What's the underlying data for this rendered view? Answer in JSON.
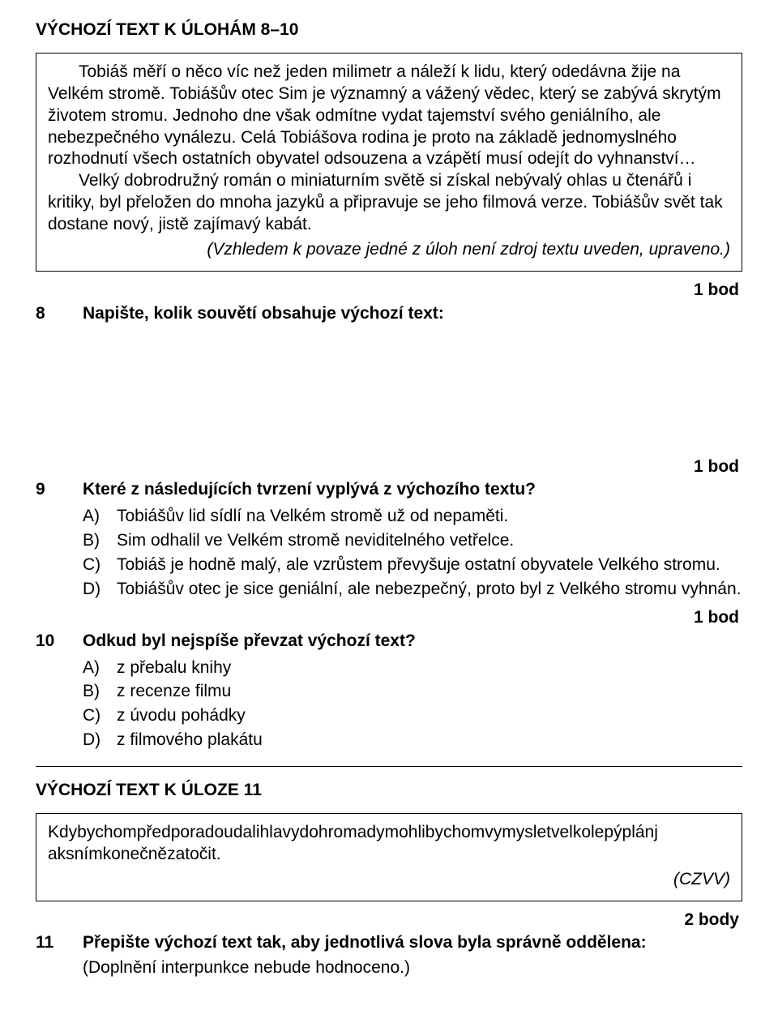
{
  "heading1": "VÝCHOZÍ TEXT K ÚLOHÁM 8–10",
  "box1": {
    "p1": "Tobiáš měří o něco víc než jeden milimetr a náleží k lidu, který odedávna žije na Velkém stromě. Tobiášův otec Sim je významný a vážený vědec, který se zabývá skrytým životem stromu. Jednoho dne však odmítne vydat tajemství svého geniálního, ale nebezpečného vynálezu. Celá Tobiášova rodina je proto na základě jednomyslného rozhodnutí všech ostatních obyvatel odsouzena a vzápětí musí odejít do vyhnanství…",
    "p2": "Velký dobrodružný román o miniaturním světě si získal nebývalý ohlas u čtenářů i kritiky, byl přeložen do mnoha jazyků a připravuje se jeho filmová verze. Tobiášův svět tak dostane nový, jistě zajímavý kabát.",
    "attribution": "(Vzhledem k povaze jedné z úloh není zdroj textu uveden, upraveno.)"
  },
  "q8": {
    "points": "1 bod",
    "number": "8",
    "prompt": "Napište, kolik souvětí obsahuje výchozí text:"
  },
  "q9": {
    "points": "1 bod",
    "number": "9",
    "prompt": "Které z následujících tvrzení vyplývá z výchozího textu?",
    "options": [
      {
        "letter": "A)",
        "text": "Tobiášův lid sídlí na Velkém stromě už od nepaměti."
      },
      {
        "letter": "B)",
        "text": "Sim odhalil ve Velkém stromě neviditelného vetřelce."
      },
      {
        "letter": "C)",
        "text": "Tobiáš je hodně malý, ale vzrůstem převyšuje ostatní obyvatele Velkého stromu."
      },
      {
        "letter": "D)",
        "text": "Tobiášův otec je sice geniální, ale nebezpečný, proto byl z Velkého stromu vyhnán."
      }
    ]
  },
  "q10": {
    "points": "1 bod",
    "number": "10",
    "prompt": "Odkud byl nejspíše převzat výchozí text?",
    "options": [
      {
        "letter": "A)",
        "text": "z přebalu knihy"
      },
      {
        "letter": "B)",
        "text": "z recenze filmu"
      },
      {
        "letter": "C)",
        "text": "z úvodu pohádky"
      },
      {
        "letter": "D)",
        "text": "z filmového plakátu"
      }
    ]
  },
  "heading2": "VÝCHOZÍ TEXT K ÚLOZE 11",
  "box2": {
    "line1": "Kdybychompředporadoudalihlavydohromadymohlibychomvymysletvelkolepýplánj",
    "line2": "aksnímkonečnězatočit.",
    "attribution": "(CZVV)"
  },
  "q11": {
    "points": "2 body",
    "number": "11",
    "prompt": "Přepište výchozí text tak, aby jednotlivá slova byla správně oddělena:",
    "subnote": "(Doplnění interpunkce nebude hodnoceno.)"
  }
}
